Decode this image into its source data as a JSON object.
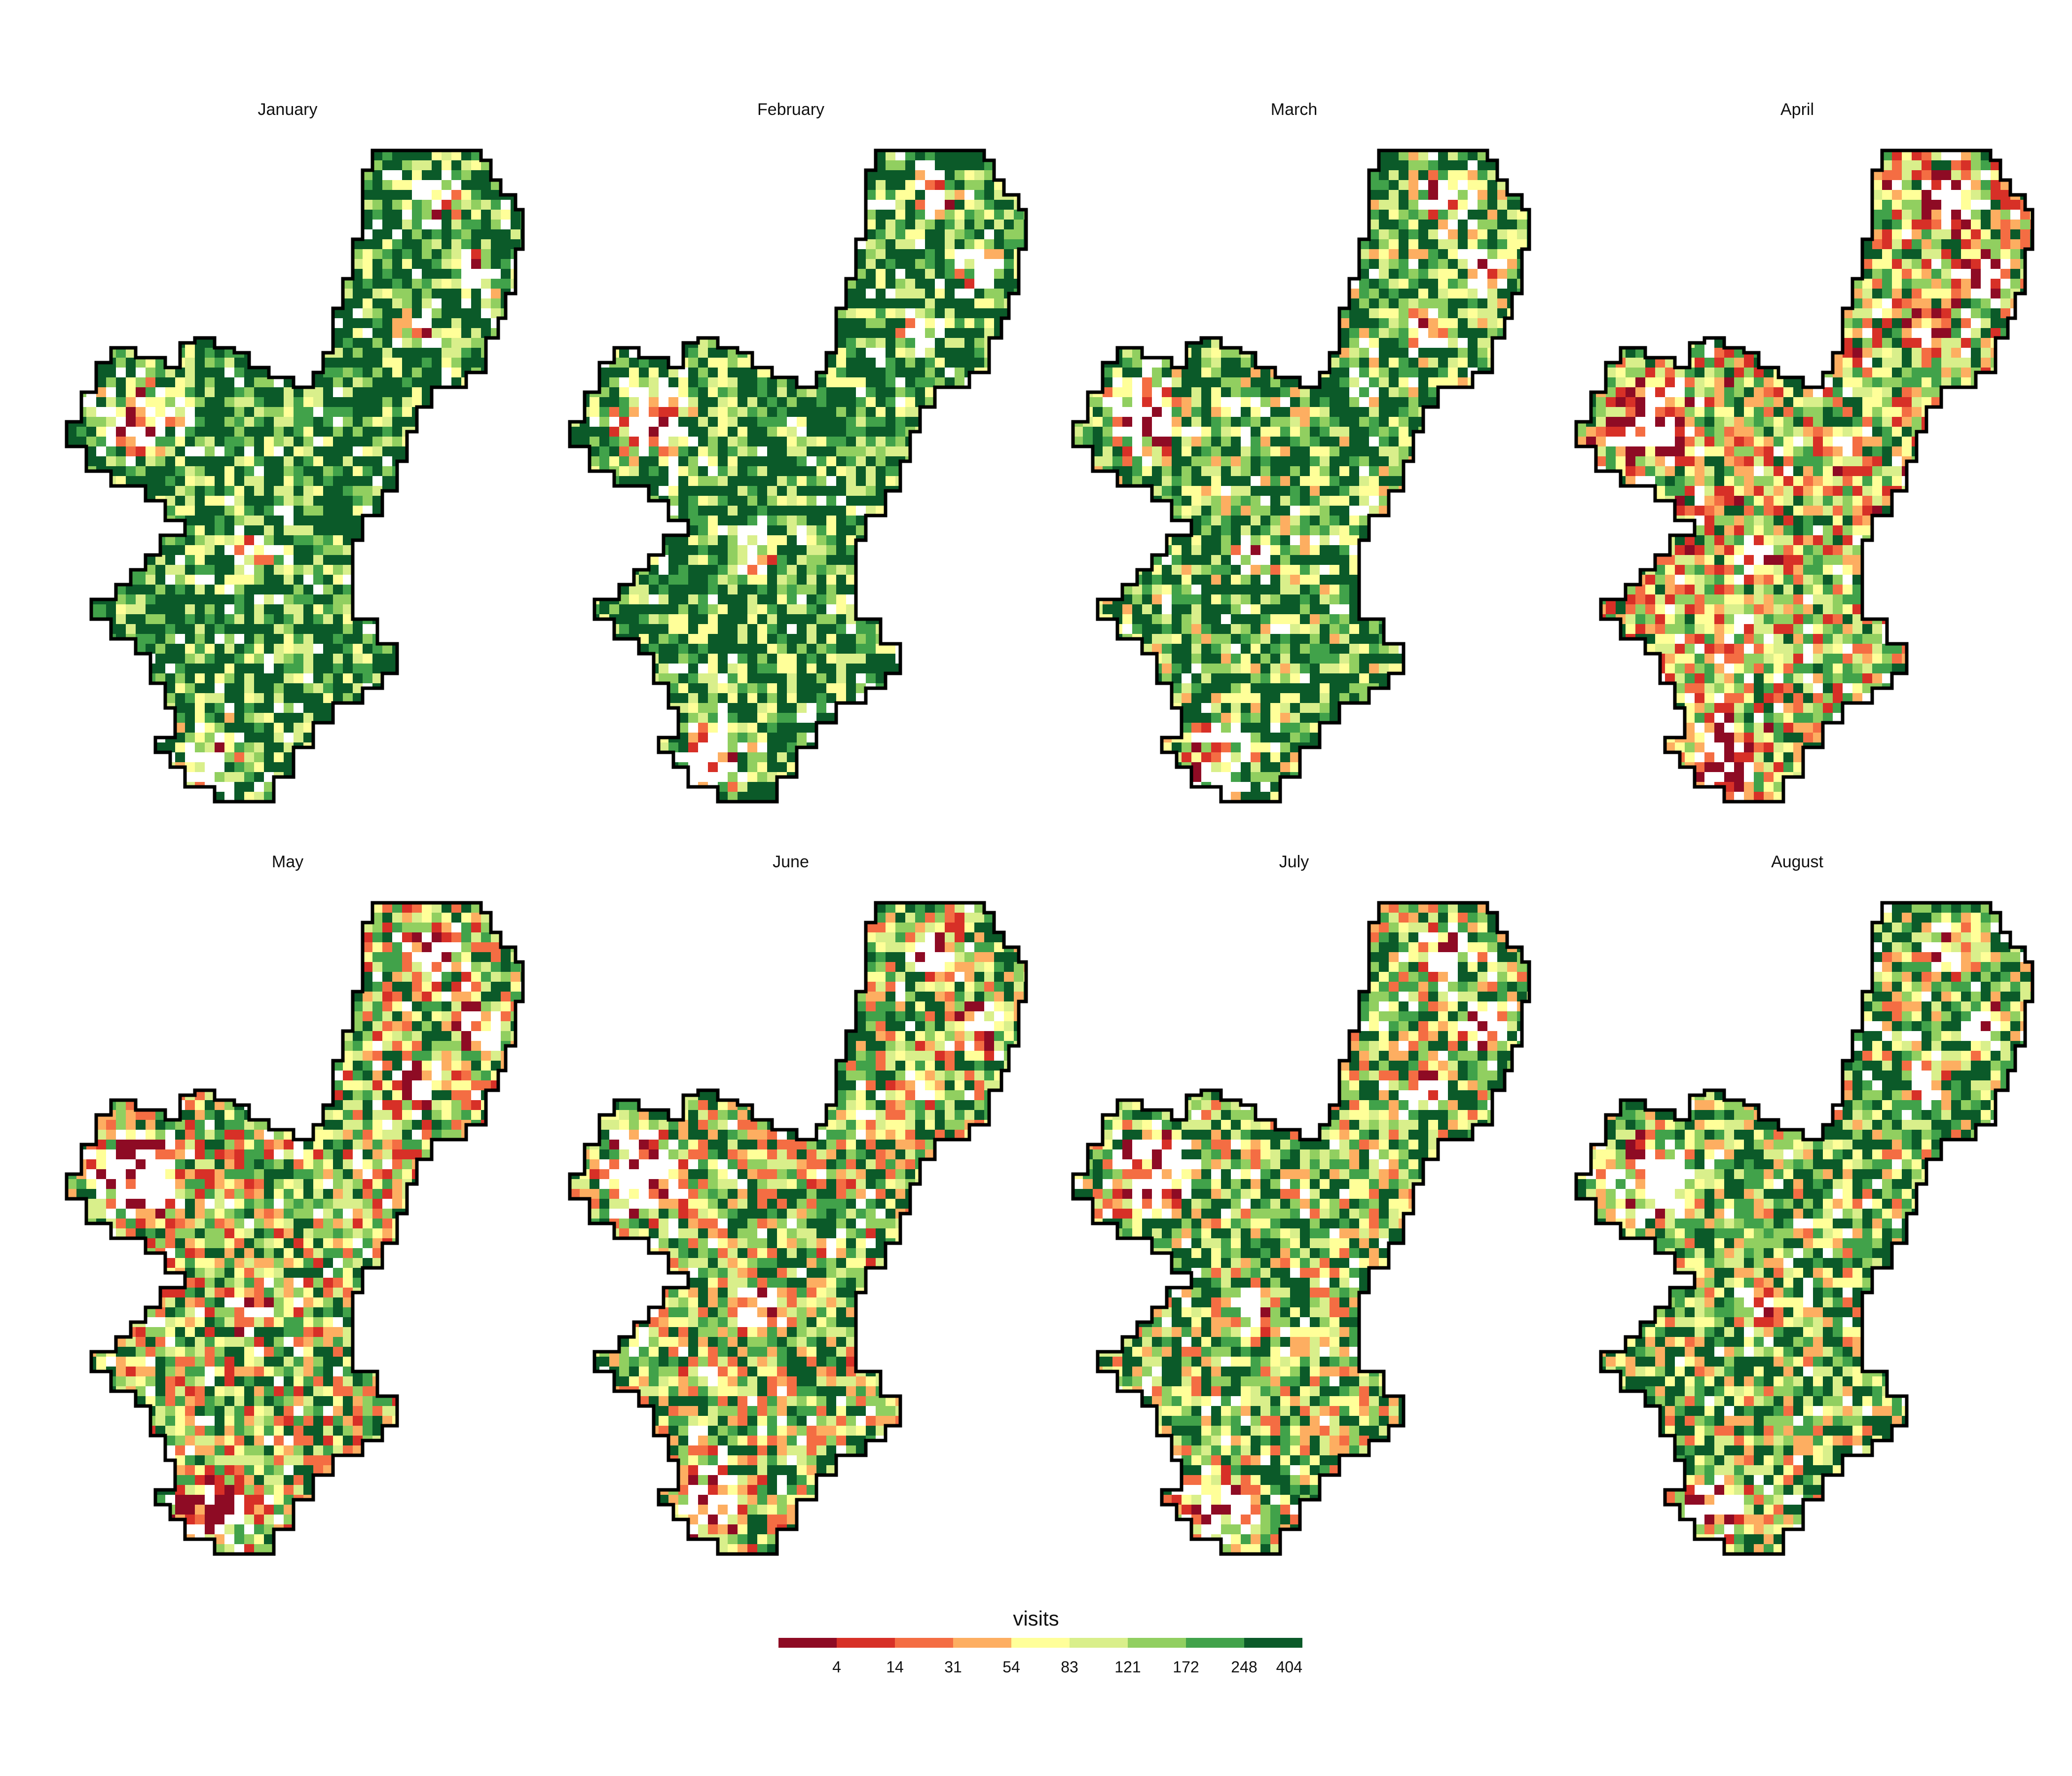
{
  "chart_data": {
    "type": "heatmap",
    "panels": [
      {
        "title": "January",
        "intensity": 0.92
      },
      {
        "title": "February",
        "intensity": 0.9
      },
      {
        "title": "March",
        "intensity": 0.82
      },
      {
        "title": "April",
        "intensity": 0.55
      },
      {
        "title": "May",
        "intensity": 0.6
      },
      {
        "title": "June",
        "intensity": 0.66
      },
      {
        "title": "July",
        "intensity": 0.68
      },
      {
        "title": "August",
        "intensity": 0.74
      }
    ],
    "legend": {
      "title": "visits",
      "placement": "bottom-center",
      "breaks": [
        "4",
        "14",
        "31",
        "54",
        "83",
        "121",
        "172",
        "248",
        "404"
      ],
      "colors": [
        "#8e0b24",
        "#d73027",
        "#f46d43",
        "#fdae61",
        "#ffff99",
        "#d9ef8b",
        "#91cf60",
        "#41a24a",
        "#0b5a29"
      ]
    },
    "outline_color": "#000000",
    "grid": false
  }
}
